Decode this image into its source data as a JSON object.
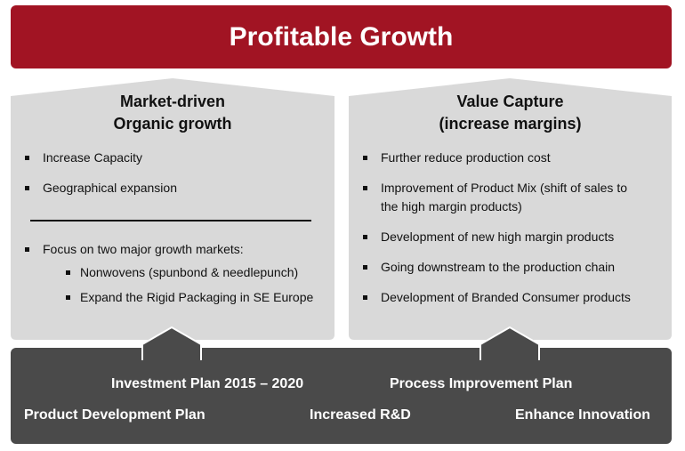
{
  "banner": {
    "title": "Profitable Growth"
  },
  "left_pillar": {
    "title_line1": "Market-driven",
    "title_line2": "Organic growth",
    "bullets": [
      "Increase Capacity",
      "Geographical expansion"
    ],
    "focus": "Focus on two major growth markets:",
    "sub_bullets": [
      "Nonwovens (spunbond & needlepunch)",
      "Expand the Rigid Packaging in SE Europe"
    ]
  },
  "right_pillar": {
    "title_line1": "Value Capture",
    "title_line2": "(increase margins)",
    "bullets": [
      "Further reduce production cost",
      "Improvement of Product Mix (shift of sales to",
      "the high margin products)",
      "Development of new high margin products",
      "Going downstream to the production chain",
      "Development of Branded Consumer products"
    ]
  },
  "foundation": {
    "investment_plan": "Investment Plan 2015 – 2020",
    "process_plan": "Process Improvement Plan",
    "product_plan": "Product Development  Plan",
    "rnd": "Increased R&D",
    "innovation": "Enhance Innovation"
  },
  "colors": {
    "banner": "#a11423",
    "pillar": "#d9d9d9",
    "foundation": "#4a4a4a"
  }
}
